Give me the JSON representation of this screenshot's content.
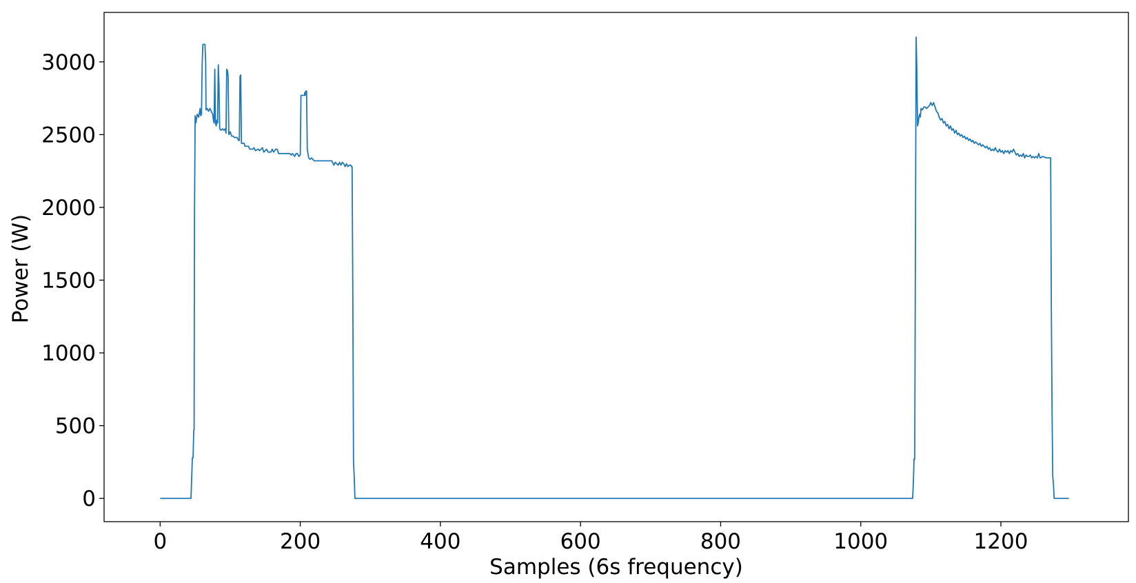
{
  "chart_data": {
    "type": "line",
    "title": "",
    "xlabel": "Samples (6s frequency)",
    "ylabel": "Power (W)",
    "xlim": [
      -80,
      1382
    ],
    "ylim": [
      -160,
      3340
    ],
    "grid": false,
    "legend": "none",
    "x_ticks": [
      0,
      200,
      400,
      600,
      800,
      1000,
      1200
    ],
    "y_ticks": [
      0,
      500,
      1000,
      1500,
      2000,
      2500,
      3000
    ],
    "series": [
      {
        "color": "#1f77b4",
        "points": [
          [
            0,
            0
          ],
          [
            44,
            0
          ],
          [
            44,
            0
          ],
          [
            46,
            280
          ],
          [
            47,
            280
          ],
          [
            48,
            470
          ],
          [
            48.5,
            470
          ],
          [
            49,
            1950
          ],
          [
            50,
            2630
          ],
          [
            51,
            2580
          ],
          [
            53,
            2640
          ],
          [
            55,
            2620
          ],
          [
            57,
            2680
          ],
          [
            58,
            2630
          ],
          [
            59,
            2640
          ],
          [
            60,
            2990
          ],
          [
            61,
            3120
          ],
          [
            64,
            3120
          ],
          [
            65,
            2990
          ],
          [
            65.5,
            2670
          ],
          [
            67,
            2680
          ],
          [
            69,
            2660
          ],
          [
            71,
            2680
          ],
          [
            73,
            2660
          ],
          [
            75,
            2640
          ],
          [
            76,
            2600
          ],
          [
            77,
            2580
          ],
          [
            78,
            2950
          ],
          [
            79,
            2580
          ],
          [
            80,
            2560
          ],
          [
            81,
            2600
          ],
          [
            82,
            2580
          ],
          [
            83,
            2980
          ],
          [
            84,
            2840
          ],
          [
            85,
            2540
          ],
          [
            87,
            2530
          ],
          [
            89,
            2540
          ],
          [
            91,
            2530
          ],
          [
            93,
            2540
          ],
          [
            94,
            2510
          ],
          [
            95,
            2950
          ],
          [
            96,
            2940
          ],
          [
            97,
            2900
          ],
          [
            98,
            2500
          ],
          [
            100,
            2520
          ],
          [
            102,
            2490
          ],
          [
            104,
            2490
          ],
          [
            106,
            2480
          ],
          [
            110,
            2480
          ],
          [
            112,
            2460
          ],
          [
            113,
            2460
          ],
          [
            114,
            2900
          ],
          [
            115,
            2910
          ],
          [
            116,
            2440
          ],
          [
            120,
            2440
          ],
          [
            121,
            2420
          ],
          [
            125,
            2420
          ],
          [
            126,
            2420
          ],
          [
            128,
            2400
          ],
          [
            132,
            2400
          ],
          [
            134,
            2410
          ],
          [
            136,
            2390
          ],
          [
            140,
            2400
          ],
          [
            142,
            2390
          ],
          [
            144,
            2400
          ],
          [
            146,
            2410
          ],
          [
            148,
            2380
          ],
          [
            150,
            2390
          ],
          [
            152,
            2400
          ],
          [
            154,
            2380
          ],
          [
            158,
            2380
          ],
          [
            160,
            2400
          ],
          [
            162,
            2380
          ],
          [
            165,
            2400
          ],
          [
            167,
            2400
          ],
          [
            169,
            2370
          ],
          [
            175,
            2370
          ],
          [
            180,
            2370
          ],
          [
            185,
            2370
          ],
          [
            187,
            2360
          ],
          [
            189,
            2370
          ],
          [
            192,
            2350
          ],
          [
            194,
            2370
          ],
          [
            196,
            2370
          ],
          [
            198,
            2350
          ],
          [
            200,
            2360
          ],
          [
            201,
            2770
          ],
          [
            205,
            2770
          ],
          [
            206,
            2770
          ],
          [
            206.5,
            2790
          ],
          [
            207,
            2770
          ],
          [
            208,
            2800
          ],
          [
            209,
            2800
          ],
          [
            210,
            2400
          ],
          [
            212,
            2340
          ],
          [
            214,
            2330
          ],
          [
            216,
            2340
          ],
          [
            218,
            2330
          ],
          [
            220,
            2320
          ],
          [
            230,
            2320
          ],
          [
            240,
            2320
          ],
          [
            245,
            2320
          ],
          [
            248,
            2290
          ],
          [
            250,
            2310
          ],
          [
            252,
            2300
          ],
          [
            254,
            2290
          ],
          [
            256,
            2310
          ],
          [
            258,
            2290
          ],
          [
            260,
            2310
          ],
          [
            262,
            2300
          ],
          [
            264,
            2280
          ],
          [
            266,
            2300
          ],
          [
            268,
            2280
          ],
          [
            270,
            2290
          ],
          [
            272,
            2290
          ],
          [
            273,
            2280
          ],
          [
            274,
            2280
          ],
          [
            275,
            1400
          ],
          [
            276,
            250
          ],
          [
            277,
            150
          ],
          [
            278,
            0
          ],
          [
            300,
            0
          ],
          [
            600,
            0
          ],
          [
            900,
            0
          ],
          [
            1060,
            0
          ],
          [
            1074,
            0
          ],
          [
            1075,
            100
          ],
          [
            1076,
            270
          ],
          [
            1077,
            270
          ],
          [
            1078,
            1750
          ],
          [
            1079,
            3170
          ],
          [
            1080,
            2950
          ],
          [
            1081,
            2560
          ],
          [
            1082,
            2580
          ],
          [
            1083,
            2620
          ],
          [
            1084,
            2640
          ],
          [
            1085,
            2620
          ],
          [
            1086,
            2680
          ],
          [
            1088,
            2670
          ],
          [
            1090,
            2690
          ],
          [
            1092,
            2690
          ],
          [
            1094,
            2680
          ],
          [
            1096,
            2690
          ],
          [
            1098,
            2700
          ],
          [
            1100,
            2720
          ],
          [
            1102,
            2700
          ],
          [
            1104,
            2720
          ],
          [
            1106,
            2690
          ],
          [
            1108,
            2660
          ],
          [
            1110,
            2650
          ],
          [
            1112,
            2620
          ],
          [
            1114,
            2600
          ],
          [
            1116,
            2610
          ],
          [
            1118,
            2580
          ],
          [
            1120,
            2590
          ],
          [
            1122,
            2560
          ],
          [
            1124,
            2570
          ],
          [
            1126,
            2540
          ],
          [
            1128,
            2560
          ],
          [
            1130,
            2530
          ],
          [
            1132,
            2540
          ],
          [
            1134,
            2510
          ],
          [
            1136,
            2530
          ],
          [
            1138,
            2500
          ],
          [
            1140,
            2510
          ],
          [
            1142,
            2490
          ],
          [
            1144,
            2500
          ],
          [
            1146,
            2480
          ],
          [
            1148,
            2490
          ],
          [
            1150,
            2470
          ],
          [
            1152,
            2480
          ],
          [
            1154,
            2460
          ],
          [
            1156,
            2470
          ],
          [
            1158,
            2450
          ],
          [
            1160,
            2460
          ],
          [
            1162,
            2440
          ],
          [
            1164,
            2450
          ],
          [
            1166,
            2440
          ],
          [
            1168,
            2430
          ],
          [
            1170,
            2440
          ],
          [
            1172,
            2420
          ],
          [
            1174,
            2430
          ],
          [
            1176,
            2420
          ],
          [
            1178,
            2410
          ],
          [
            1180,
            2420
          ],
          [
            1182,
            2400
          ],
          [
            1184,
            2410
          ],
          [
            1186,
            2390
          ],
          [
            1188,
            2400
          ],
          [
            1190,
            2390
          ],
          [
            1192,
            2410
          ],
          [
            1194,
            2390
          ],
          [
            1196,
            2380
          ],
          [
            1198,
            2400
          ],
          [
            1200,
            2380
          ],
          [
            1202,
            2390
          ],
          [
            1204,
            2370
          ],
          [
            1206,
            2390
          ],
          [
            1208,
            2380
          ],
          [
            1210,
            2390
          ],
          [
            1212,
            2370
          ],
          [
            1214,
            2390
          ],
          [
            1216,
            2380
          ],
          [
            1218,
            2400
          ],
          [
            1220,
            2380
          ],
          [
            1222,
            2360
          ],
          [
            1224,
            2370
          ],
          [
            1226,
            2350
          ],
          [
            1228,
            2360
          ],
          [
            1230,
            2350
          ],
          [
            1232,
            2370
          ],
          [
            1234,
            2340
          ],
          [
            1236,
            2360
          ],
          [
            1238,
            2350
          ],
          [
            1240,
            2350
          ],
          [
            1242,
            2360
          ],
          [
            1244,
            2340
          ],
          [
            1246,
            2350
          ],
          [
            1248,
            2340
          ],
          [
            1250,
            2350
          ],
          [
            1252,
            2340
          ],
          [
            1254,
            2370
          ],
          [
            1256,
            2340
          ],
          [
            1260,
            2350
          ],
          [
            1265,
            2340
          ],
          [
            1270,
            2340
          ],
          [
            1271,
            2340
          ],
          [
            1272,
            1300
          ],
          [
            1273,
            600
          ],
          [
            1274,
            150
          ],
          [
            1275,
            100
          ],
          [
            1276,
            0
          ],
          [
            1280,
            0
          ],
          [
            1297,
            0
          ]
        ]
      }
    ]
  }
}
